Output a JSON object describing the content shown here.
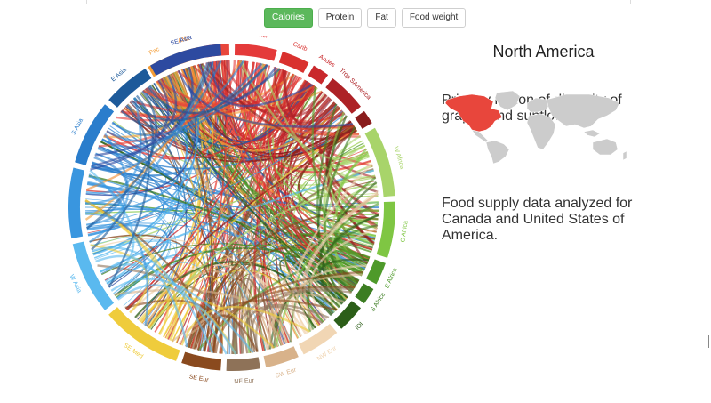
{
  "tabs": [
    {
      "label": "Calories",
      "active": true
    },
    {
      "label": "Protein",
      "active": false
    },
    {
      "label": "Fat",
      "active": false
    },
    {
      "label": "Food weight",
      "active": false
    }
  ],
  "diagram": {
    "regions": [
      {
        "label": "Pac",
        "color": "#f39c35"
      },
      {
        "label": "ANZ",
        "color": "#f08a2f"
      },
      {
        "label": "N Amer",
        "color": "#e8463c"
      },
      {
        "label": "C Amer",
        "color": "#e43a3a"
      },
      {
        "label": "Carib",
        "color": "#d9312e"
      },
      {
        "label": "Andes",
        "color": "#c9282c"
      },
      {
        "label": "Trop SAmerica",
        "color": "#ad2226"
      },
      {
        "label": "",
        "color": "#8a1c1c"
      },
      {
        "label": "W Africa",
        "color": "#a8d46a"
      },
      {
        "label": "C Africa",
        "color": "#7fc643"
      },
      {
        "label": "E Africa",
        "color": "#4e9a2a"
      },
      {
        "label": "S Africa",
        "color": "#3c7d22"
      },
      {
        "label": "IOI",
        "color": "#2c5e18"
      },
      {
        "label": "NW Eur",
        "color": "#f1d6b4"
      },
      {
        "label": "SW Eur",
        "color": "#d8b28a"
      },
      {
        "label": "NE Eur",
        "color": "#8e7258"
      },
      {
        "label": "SE Eur",
        "color": "#8a4a1e"
      },
      {
        "label": "SE Med",
        "color": "#efcc3c"
      },
      {
        "label": "W Asia",
        "color": "#5ab9ef"
      },
      {
        "label": "C Asia",
        "color": "#3996df"
      },
      {
        "label": "S Asia",
        "color": "#2a7dcc"
      },
      {
        "label": "E Asia",
        "color": "#1d5a9a"
      },
      {
        "label": "SE Asia",
        "color": "#2d4aa0"
      }
    ]
  },
  "info": {
    "title": "North America",
    "region_text": "Primary region of diversity of grapes and sunflower.",
    "supply_text": "Food supply data analyzed for Canada and United States of America."
  },
  "map": {
    "highlight_color": "#e8463c",
    "base_color": "#cccccc"
  }
}
